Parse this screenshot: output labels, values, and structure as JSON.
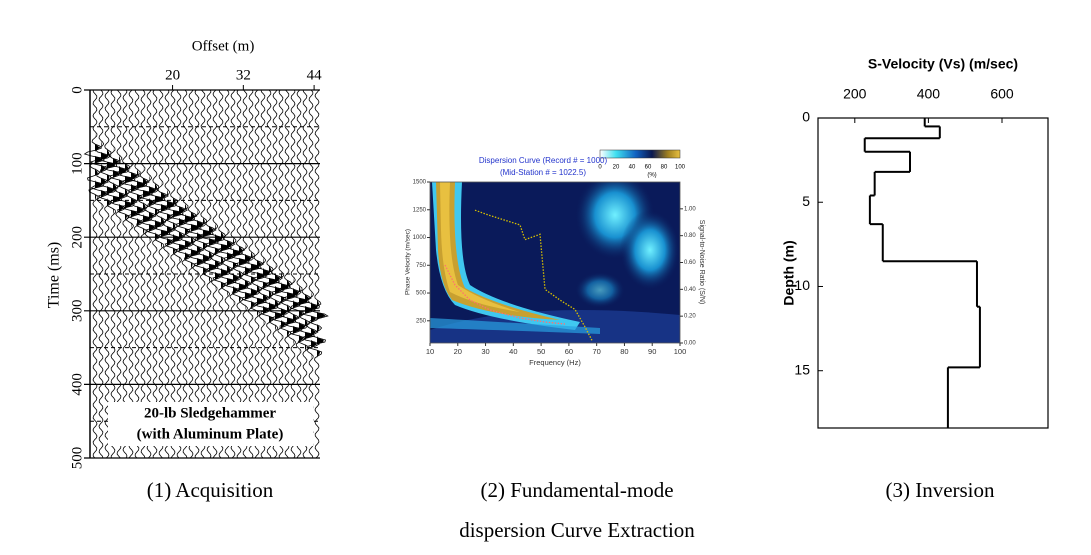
{
  "chart_data": [
    {
      "type": "seismogram",
      "xlabel": "Offset (m)",
      "ylabel": "Time (ms)",
      "xlim": [
        6,
        45
      ],
      "xticks": [
        20,
        32,
        44
      ],
      "ylim": [
        0,
        500
      ],
      "yticks": [
        0,
        100,
        200,
        300,
        400,
        500
      ],
      "minor_yticks": [
        50,
        150,
        250,
        350,
        450
      ],
      "invert_y": true,
      "color": "#000000",
      "annotation": [
        "20-lb Sledgehammer",
        "(with Aluminum Plate)"
      ]
    },
    {
      "type": "dispersion-image",
      "title": [
        "Dispersion Curve (Record # = 1000)",
        "(Mid-Station # = 1022.5)"
      ],
      "xlabel": "Frequency (Hz)",
      "ylabel": "Phase Velocity (m/sec)",
      "y2label": "Signal-to-Noise Ratio (S/N)",
      "xlim": [
        10,
        100
      ],
      "xticks": [
        10,
        20,
        30,
        40,
        50,
        60,
        70,
        80,
        90,
        100
      ],
      "ylim": [
        50,
        1500
      ],
      "yticks": [
        250,
        500,
        750,
        1000,
        1250,
        1500
      ],
      "y2lim": [
        0,
        1.2
      ],
      "y2ticks": [
        {
          "value": 0,
          "label": "0.00"
        },
        {
          "value": 0.2,
          "label": "0.20"
        },
        {
          "value": 0.4,
          "label": "0.40"
        },
        {
          "value": 0.6,
          "label": "0.60"
        },
        {
          "value": 0.8,
          "label": "0.80"
        },
        {
          "value": 1.0,
          "label": "1.00"
        }
      ],
      "colorbar": {
        "lim": [
          0,
          100
        ],
        "ticks": [
          0,
          20,
          40,
          60,
          80,
          100
        ],
        "label": "(%)"
      },
      "series": [
        {
          "color": "#ff7070",
          "x": [
            15.4,
            19,
            24.4,
            31.6,
            42.4,
            51.4,
            58.6
          ],
          "values": [
            752,
            572,
            437,
            347,
            275,
            239,
            221
          ]
        },
        {
          "color": "#d8c000",
          "axis": "y2",
          "x": [
            26.2,
            31.6,
            42.4,
            44.2,
            49.6,
            51.4,
            56.8,
            62.2,
            65.8,
            68.3
          ],
          "values": [
            0.99,
            0.95,
            0.88,
            0.77,
            0.81,
            0.4,
            0.32,
            0.25,
            0.12,
            0.02
          ]
        }
      ]
    },
    {
      "type": "step-profile",
      "title": "S-Velocity (Vs) (m/sec)",
      "ylabel": "Depth (m)",
      "xlim": [
        100,
        725
      ],
      "xticks": [
        200,
        400,
        600
      ],
      "ylim": [
        0,
        18.4
      ],
      "yticks": [
        0,
        5,
        10,
        15
      ],
      "invert_y": true,
      "color": "#000000",
      "depths": [
        0,
        0.5,
        1.2,
        2.0,
        3.2,
        4.6,
        6.3,
        8.5,
        11.2,
        14.8
      ],
      "values": [
        390,
        431,
        227,
        350,
        254,
        241,
        276,
        532,
        540,
        453
      ]
    }
  ],
  "captions": [
    "(1) Acquisition",
    [
      "(2) Fundamental-mode",
      "dispersion Curve Extraction"
    ],
    "(3) Inversion"
  ]
}
